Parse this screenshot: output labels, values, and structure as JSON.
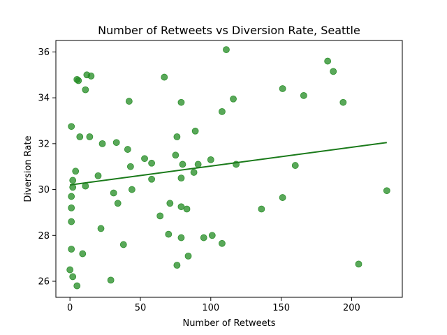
{
  "chart_data": {
    "type": "scatter",
    "title": "Number of Retweets vs Diversion Rate, Seattle",
    "xlabel": "Number of Retweets",
    "ylabel": "Diversion Rate",
    "xlim": [
      -10,
      236
    ],
    "ylim": [
      25.3,
      36.5
    ],
    "xticks": [
      0,
      50,
      100,
      150,
      200
    ],
    "yticks": [
      26,
      28,
      30,
      32,
      34,
      36
    ],
    "grid": false,
    "legend": "none",
    "point_color": "#228b22",
    "line_color": "#1a7a1a",
    "trend_line": {
      "x": [
        0,
        225
      ],
      "y": [
        30.2,
        32.05
      ]
    },
    "points": [
      {
        "x": 0,
        "y": 26.5
      },
      {
        "x": 2,
        "y": 26.2
      },
      {
        "x": 5,
        "y": 25.8
      },
      {
        "x": 1,
        "y": 27.4
      },
      {
        "x": 9,
        "y": 27.2
      },
      {
        "x": 1,
        "y": 28.6
      },
      {
        "x": 1,
        "y": 29.2
      },
      {
        "x": 1,
        "y": 29.7
      },
      {
        "x": 2,
        "y": 30.1
      },
      {
        "x": 2,
        "y": 30.4
      },
      {
        "x": 4,
        "y": 30.8
      },
      {
        "x": 11,
        "y": 30.15
      },
      {
        "x": 1,
        "y": 32.75
      },
      {
        "x": 7,
        "y": 32.3
      },
      {
        "x": 14,
        "y": 32.3
      },
      {
        "x": 5,
        "y": 34.8
      },
      {
        "x": 6,
        "y": 34.75
      },
      {
        "x": 11,
        "y": 34.35
      },
      {
        "x": 12,
        "y": 35.0
      },
      {
        "x": 15,
        "y": 34.95
      },
      {
        "x": 20,
        "y": 30.6
      },
      {
        "x": 22,
        "y": 28.3
      },
      {
        "x": 23,
        "y": 32.0
      },
      {
        "x": 29,
        "y": 26.05
      },
      {
        "x": 31,
        "y": 29.85
      },
      {
        "x": 33,
        "y": 32.05
      },
      {
        "x": 34,
        "y": 29.4
      },
      {
        "x": 38,
        "y": 27.6
      },
      {
        "x": 41,
        "y": 31.75
      },
      {
        "x": 42,
        "y": 33.85
      },
      {
        "x": 43,
        "y": 31.0
      },
      {
        "x": 44,
        "y": 30.0
      },
      {
        "x": 53,
        "y": 31.35
      },
      {
        "x": 58,
        "y": 31.15
      },
      {
        "x": 58,
        "y": 30.45
      },
      {
        "x": 64,
        "y": 28.85
      },
      {
        "x": 67,
        "y": 34.9
      },
      {
        "x": 70,
        "y": 28.05
      },
      {
        "x": 71,
        "y": 29.4
      },
      {
        "x": 75,
        "y": 31.5
      },
      {
        "x": 76,
        "y": 32.3
      },
      {
        "x": 76,
        "y": 26.7
      },
      {
        "x": 79,
        "y": 33.8
      },
      {
        "x": 79,
        "y": 30.5
      },
      {
        "x": 79,
        "y": 29.25
      },
      {
        "x": 79,
        "y": 27.9
      },
      {
        "x": 80,
        "y": 31.1
      },
      {
        "x": 83,
        "y": 29.15
      },
      {
        "x": 84,
        "y": 27.1
      },
      {
        "x": 88,
        "y": 30.75
      },
      {
        "x": 89,
        "y": 32.55
      },
      {
        "x": 91,
        "y": 31.1
      },
      {
        "x": 95,
        "y": 27.9
      },
      {
        "x": 100,
        "y": 31.3
      },
      {
        "x": 101,
        "y": 28.0
      },
      {
        "x": 108,
        "y": 33.4
      },
      {
        "x": 108,
        "y": 27.65
      },
      {
        "x": 111,
        "y": 36.1
      },
      {
        "x": 116,
        "y": 33.95
      },
      {
        "x": 118,
        "y": 31.1
      },
      {
        "x": 136,
        "y": 29.15
      },
      {
        "x": 151,
        "y": 34.4
      },
      {
        "x": 151,
        "y": 29.65
      },
      {
        "x": 160,
        "y": 31.05
      },
      {
        "x": 166,
        "y": 34.1
      },
      {
        "x": 183,
        "y": 35.6
      },
      {
        "x": 187,
        "y": 35.15
      },
      {
        "x": 194,
        "y": 33.8
      },
      {
        "x": 205,
        "y": 26.75
      },
      {
        "x": 225,
        "y": 29.95
      }
    ]
  }
}
